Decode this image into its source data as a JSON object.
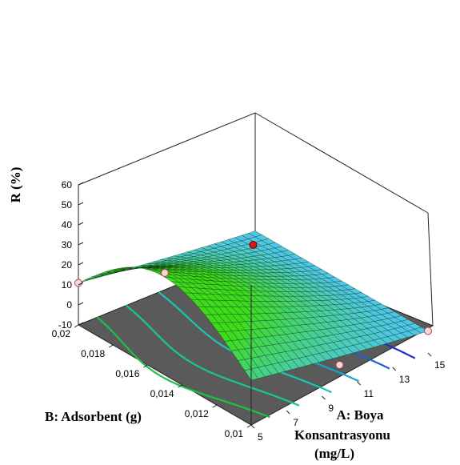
{
  "chart_data": {
    "type": "surface",
    "zlabel": "R (%)",
    "xlabel": "B: Adsorbent (g)",
    "ylabel_lines": [
      "A: Boya",
      "Konsantrasyonu",
      "(mg/L)"
    ],
    "z_ticks": [
      "60",
      "50",
      "40",
      "30",
      "20",
      "10",
      "0",
      "-10"
    ],
    "b_ticks": [
      "0,02",
      "0,018",
      "0,016",
      "0,014",
      "0,012",
      "0,01"
    ],
    "a_ticks": [
      "5",
      "7",
      "9",
      "11",
      "13",
      "15"
    ],
    "zlim": [
      -10,
      60
    ],
    "b_range": [
      0.01,
      0.02
    ],
    "a_range": [
      5,
      15
    ],
    "surface_grid": {
      "a": [
        5,
        15
      ],
      "b": [
        0.01,
        0.02
      ],
      "r_corners": {
        "a5_b001": 2,
        "a5_b002": 11,
        "a15_b001": 1,
        "a15_b002": 36
      },
      "peak": {
        "a": 5,
        "b": 0.0155,
        "r": 41
      }
    },
    "design_points": [
      {
        "a": 5,
        "b": 0.02,
        "r": 11
      },
      {
        "a": 5,
        "b": 0.015,
        "r": 41
      },
      {
        "a": 10,
        "b": 0.015,
        "r": 37,
        "highlight": true
      },
      {
        "a": 15,
        "b": 0.01,
        "r": 1
      },
      {
        "a": 10,
        "b": 0.01,
        "r": 2
      }
    ],
    "contour_colors": [
      "#1fbf4a",
      "#19c98a",
      "#17c7b5",
      "#12a8c8",
      "#1b5fd6",
      "#2230c8"
    ],
    "surface_colors": {
      "high": "#3edb1c",
      "low": "#4fc6e8"
    },
    "floor_color": "#5a5a5a",
    "grid": false
  }
}
